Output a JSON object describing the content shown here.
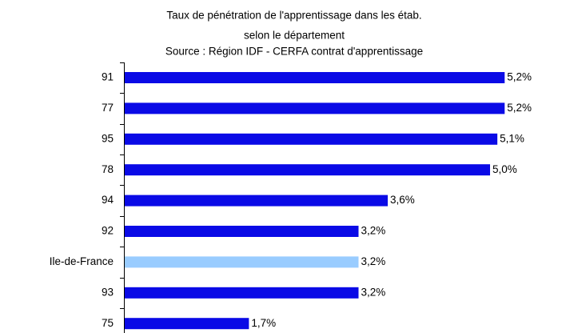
{
  "chart_data": {
    "type": "barh",
    "title": [
      "Taux de pénétration de l'apprentissage dans les étab.",
      "selon le département"
    ],
    "subtitle": "Source : Région IDF - CERFA contrat d'apprentissage",
    "categories": [
      "91",
      "77",
      "95",
      "78",
      "94",
      "92",
      "Ile-de-France",
      "93",
      "75"
    ],
    "values": [
      5.2,
      5.2,
      5.1,
      5.0,
      3.6,
      3.2,
      3.2,
      3.2,
      1.7
    ],
    "value_labels": [
      "5,2%",
      "5,2%",
      "5,1%",
      "5,0%",
      "3,6%",
      "3,2%",
      "3,2%",
      "3,2%",
      "1,7%"
    ],
    "colors": [
      "#0a0ae6",
      "#0a0ae6",
      "#0a0ae6",
      "#0a0ae6",
      "#0a0ae6",
      "#0a0ae6",
      "#99ccff",
      "#0a0ae6",
      "#0a0ae6"
    ]
  }
}
